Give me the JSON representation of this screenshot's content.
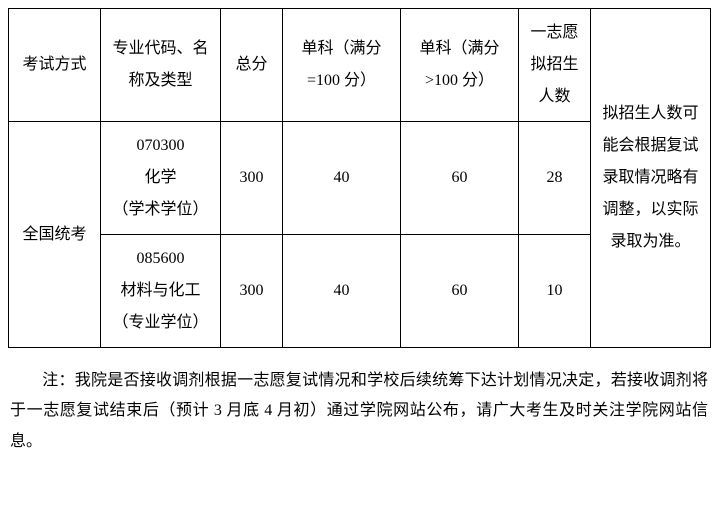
{
  "table": {
    "headers": {
      "exam_method": "考试方式",
      "major_info": "专业代码、名称及类型",
      "total_score": "总分",
      "subject_100": "单科（满分=100 分）",
      "subject_gt100": "单科（满分>100 分）",
      "first_choice_enrollment": "一志愿拟招生人数"
    },
    "exam_method_value": "全国统考",
    "rows": [
      {
        "major_code": "070300",
        "major_name": "化学",
        "degree_type": "（学术学位）",
        "total": "300",
        "sub100": "40",
        "subgt100": "60",
        "enrollment": "28"
      },
      {
        "major_code": "085600",
        "major_name": "材料与化工",
        "degree_type": "（专业学位）",
        "total": "300",
        "sub100": "40",
        "subgt100": "60",
        "enrollment": "10"
      }
    ],
    "side_note": "拟招生人数可能会根据复试录取情况略有调整，以实际录取为准。"
  },
  "footnote": "注：我院是否接收调剂根据一志愿复试情况和学校后续统筹下达计划情况决定，若接收调剂将于一志愿复试结束后（预计 3 月底 4 月初）通过学院网站公布，请广大考生及时关注学院网站信息。"
}
